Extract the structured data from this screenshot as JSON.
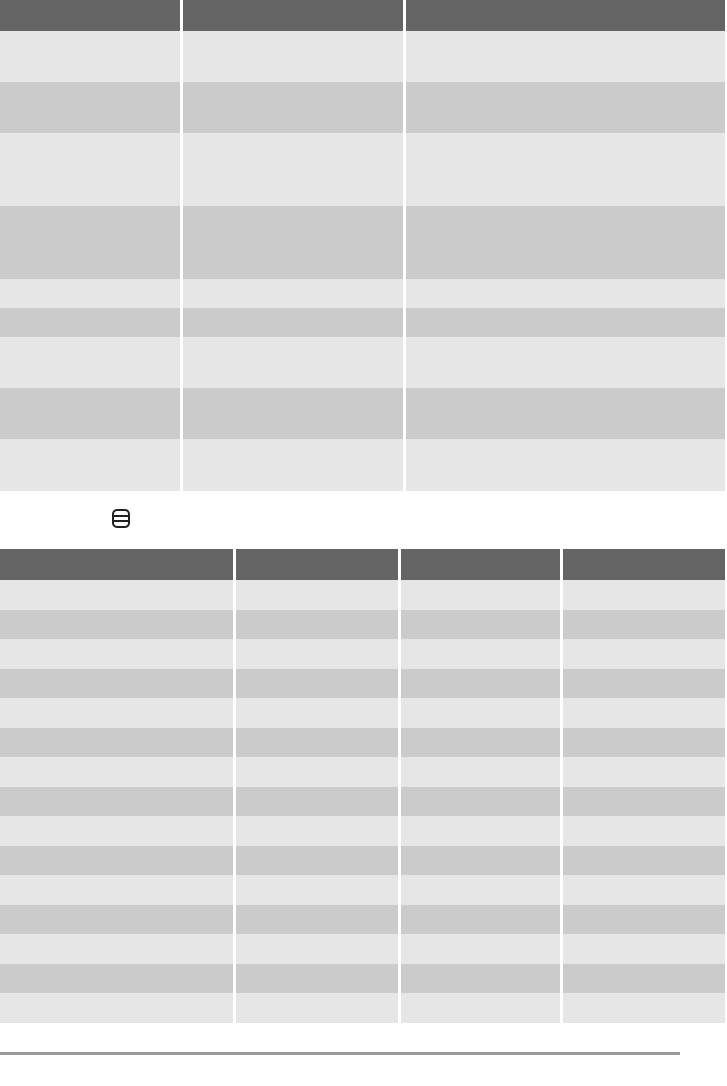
{
  "colors": {
    "header": "#656565",
    "row_light": "#e6e6e6",
    "row_dark": "#cbcbcb"
  },
  "table1": {
    "headers": [
      "",
      "",
      ""
    ],
    "rows": [
      [
        "",
        "",
        ""
      ],
      [
        "",
        "",
        ""
      ],
      [
        "",
        "",
        ""
      ],
      [
        "",
        "",
        ""
      ],
      [
        "",
        "",
        ""
      ],
      [
        "",
        "",
        ""
      ],
      [
        "",
        "",
        ""
      ],
      [
        "",
        "",
        ""
      ],
      [
        "",
        "",
        ""
      ]
    ]
  },
  "section_icon": {
    "icon": "rounded-rectangle-icon"
  },
  "table2": {
    "headers": [
      "",
      "",
      "",
      ""
    ],
    "rows": [
      [
        "",
        "",
        "",
        ""
      ],
      [
        "",
        "",
        "",
        ""
      ],
      [
        "",
        "",
        "",
        ""
      ],
      [
        "",
        "",
        "",
        ""
      ],
      [
        "",
        "",
        "",
        ""
      ],
      [
        "",
        "",
        "",
        ""
      ],
      [
        "",
        "",
        "",
        ""
      ],
      [
        "",
        "",
        "",
        ""
      ],
      [
        "",
        "",
        "",
        ""
      ],
      [
        "",
        "",
        "",
        ""
      ],
      [
        "",
        "",
        "",
        ""
      ],
      [
        "",
        "",
        "",
        ""
      ],
      [
        "",
        "",
        "",
        ""
      ],
      [
        "",
        "",
        "",
        ""
      ],
      [
        "",
        "",
        "",
        ""
      ]
    ]
  }
}
